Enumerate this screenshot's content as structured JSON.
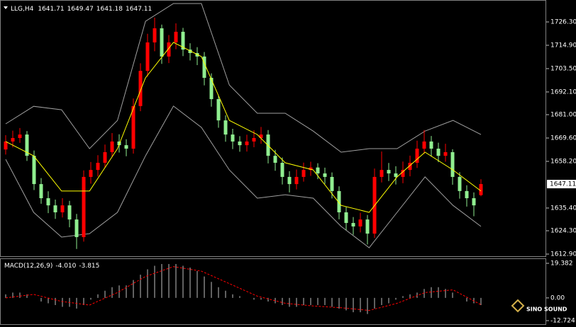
{
  "chart_data": [
    {
      "type": "candlestick",
      "symbol": "LLG,H4",
      "open": [
        1664.0,
        1667.9,
        1669.6,
        1671.3,
        1660.9,
        1647.1,
        1640.2,
        1636.7,
        1633.3,
        1636.7,
        1629.8,
        1621.2,
        1650.6,
        1654.0,
        1657.5,
        1662.7,
        1667.9,
        1666.1,
        1664.4,
        1685.2,
        1702.4,
        1716.3,
        1723.2,
        1709.4,
        1716.3,
        1721.5,
        1712.8,
        1711.1,
        1709.4,
        1699.0,
        1688.6,
        1678.2,
        1671.3,
        1667.9,
        1666.1,
        1667.9,
        1669.6,
        1671.3,
        1660.9,
        1657.5,
        1650.6,
        1647.1,
        1650.6,
        1654.0,
        1655.2,
        1652.3,
        1650.6,
        1643.7,
        1633.3,
        1628.1,
        1626.4,
        1629.8,
        1622.9,
        1650.6,
        1654.0,
        1652.3,
        1650.6,
        1654.0,
        1657.5,
        1664.4,
        1667.9,
        1664.4,
        1660.9,
        1662.7,
        1650.6,
        1643.7,
        1640.2,
        1641.71
      ],
      "high": [
        1671.0,
        1673.2,
        1674.5,
        1673.0,
        1663.5,
        1650.0,
        1643.6,
        1639.5,
        1640.2,
        1638.9,
        1632.5,
        1653.8,
        1657.9,
        1661.2,
        1666.4,
        1672.0,
        1671.4,
        1669.0,
        1688.9,
        1706.1,
        1720.5,
        1728.4,
        1725.0,
        1719.9,
        1725.6,
        1723.4,
        1715.9,
        1714.0,
        1711.6,
        1701.2,
        1690.4,
        1680.7,
        1674.1,
        1670.5,
        1671.2,
        1673.4,
        1675.0,
        1673.5,
        1663.8,
        1660.1,
        1653.4,
        1654.2,
        1657.6,
        1658.0,
        1657.3,
        1655.1,
        1652.8,
        1646.0,
        1636.2,
        1631.0,
        1633.1,
        1632.0,
        1654.7,
        1663.0,
        1657.4,
        1655.8,
        1658.1,
        1661.0,
        1668.3,
        1673.5,
        1670.6,
        1667.3,
        1666.8,
        1664.1,
        1652.9,
        1646.5,
        1643.0,
        1649.47
      ],
      "low": [
        1661.5,
        1665.0,
        1667.2,
        1658.4,
        1644.2,
        1637.5,
        1632.9,
        1630.1,
        1630.8,
        1626.0,
        1615.4,
        1619.0,
        1647.3,
        1650.8,
        1655.1,
        1660.2,
        1662.5,
        1660.7,
        1662.0,
        1682.7,
        1699.6,
        1712.0,
        1705.8,
        1706.2,
        1713.0,
        1709.6,
        1707.5,
        1705.2,
        1695.3,
        1684.9,
        1674.6,
        1667.8,
        1664.2,
        1662.9,
        1663.0,
        1665.1,
        1666.8,
        1657.2,
        1653.6,
        1646.9,
        1643.0,
        1644.5,
        1648.3,
        1651.1,
        1649.5,
        1647.2,
        1640.1,
        1629.9,
        1624.6,
        1622.3,
        1623.5,
        1617.6,
        1620.8,
        1647.9,
        1648.6,
        1646.9,
        1647.5,
        1650.9,
        1655.0,
        1661.8,
        1660.5,
        1657.8,
        1658.0,
        1646.8,
        1640.0,
        1636.1,
        1631.4,
        1641.18
      ],
      "close": [
        1667.9,
        1669.6,
        1671.3,
        1660.9,
        1647.1,
        1640.2,
        1636.7,
        1633.3,
        1636.7,
        1629.8,
        1621.2,
        1650.6,
        1654.0,
        1657.5,
        1662.7,
        1667.9,
        1666.1,
        1664.4,
        1685.2,
        1702.4,
        1716.3,
        1723.2,
        1709.4,
        1716.3,
        1721.5,
        1712.8,
        1711.1,
        1709.4,
        1699.0,
        1688.6,
        1678.2,
        1671.3,
        1667.9,
        1666.1,
        1667.9,
        1669.6,
        1671.3,
        1660.9,
        1657.5,
        1650.6,
        1647.1,
        1650.6,
        1654.0,
        1655.2,
        1652.3,
        1650.6,
        1643.7,
        1633.3,
        1628.1,
        1626.4,
        1629.8,
        1622.9,
        1650.6,
        1654.0,
        1652.3,
        1650.6,
        1654.0,
        1657.5,
        1664.4,
        1667.9,
        1664.4,
        1660.9,
        1662.7,
        1650.6,
        1643.7,
        1640.2,
        1636.7,
        1647.11
      ],
      "up_color": "#ff0000",
      "down_color": "#90ee90",
      "upper_band": {
        "color": "#a0a0a0",
        "values": [
          1676.5,
          1685.1,
          1683.4,
          1664.4,
          1678.2,
          1726.6,
          1735.3,
          1735.3,
          1695.5,
          1681.7,
          1681.7,
          1673.0,
          1662.7,
          1664.4,
          1664.4,
          1673.0,
          1678.2,
          1671.3
        ]
      },
      "lower_band": {
        "color": "#a0a0a0",
        "values": [
          1659.2,
          1633.3,
          1621.2,
          1622.9,
          1633.3,
          1660.9,
          1685.2,
          1674.8,
          1654.0,
          1640.2,
          1641.9,
          1640.2,
          1626.4,
          1616.0,
          1633.3,
          1650.6,
          1636.7,
          1626.4
        ]
      },
      "moving_average": {
        "color": "#ffff00",
        "values": [
          1667.9,
          1660.9,
          1643.7,
          1643.7,
          1664.4,
          1699.0,
          1716.3,
          1709.4,
          1678.2,
          1671.3,
          1657.5,
          1654.0,
          1636.7,
          1633.3,
          1650.6,
          1662.7,
          1654.0,
          1643.7
        ]
      },
      "ylim": [
        1611.86,
        1735.98
      ],
      "yticks": [
        {
          "value": 1726.3,
          "label": "1726.30"
        },
        {
          "value": 1714.9,
          "label": "1714.90"
        },
        {
          "value": 1703.5,
          "label": "1703.50"
        },
        {
          "value": 1692.1,
          "label": "1692.10"
        },
        {
          "value": 1681,
          "label": "1681.00"
        },
        {
          "value": 1669.6,
          "label": "1669.60"
        },
        {
          "value": 1658.2,
          "label": "1658.20"
        },
        {
          "value": 1635.4,
          "label": "1635.40"
        },
        {
          "value": 1624.3,
          "label": "1624.30"
        },
        {
          "value": 1612.9,
          "label": "1612.90"
        }
      ],
      "watermark": "SINO SOUND"
    },
    {
      "type": "bar",
      "label": "MACD(12,26,9)",
      "header_values": [
        "-4.010",
        "-3.815"
      ],
      "color": "#c0c0c0",
      "values": [
        2,
        3,
        3,
        2,
        0,
        -2,
        -3,
        -4,
        -5,
        -5,
        -6,
        -4,
        -1,
        2,
        4,
        6,
        7,
        7,
        10,
        13,
        16,
        18,
        19,
        19,
        19,
        18,
        17,
        15,
        12,
        9,
        6,
        4,
        2,
        1,
        0,
        -1,
        -1,
        -2,
        -3,
        -4,
        -5,
        -5,
        -4,
        -4,
        -4,
        -4,
        -5,
        -6,
        -7,
        -8,
        -8,
        -9,
        -6,
        -4,
        -3,
        -1,
        1,
        2,
        3,
        5,
        6,
        6,
        5,
        3,
        0,
        -2,
        -3,
        -4.01
      ],
      "signal": {
        "color": "#ff0000",
        "values": [
          0,
          2,
          -2,
          -4,
          3,
          12,
          17.5,
          15,
          8,
          1,
          -3,
          -4.5,
          -5.5,
          -7,
          -3,
          3,
          4.5,
          -3.815
        ]
      },
      "ylim": [
        -12.724,
        19.382
      ],
      "yticks": [
        19.382,
        {
          "value": 0,
          "label": "0.00"
        },
        -12.724
      ]
    }
  ]
}
